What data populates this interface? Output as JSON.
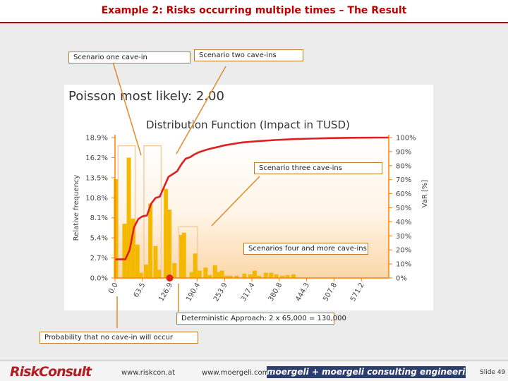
{
  "slide": {
    "title": "Example 2: Risks occurring multiple times – The Result",
    "number": "Slide 49"
  },
  "callouts": {
    "one": "Scenario one cave-in",
    "two": "Scenario two cave-ins",
    "three": "Scenario three cave-ins",
    "four": "Scenarios four and more cave-ins",
    "deterministic": "Deterministic Approach: 2 x 65,000 = 130,000",
    "zero": "Probability that no cave-in will occur"
  },
  "footer": {
    "logo": "RiskConsult",
    "url1": "www.riskcon.at",
    "url2": "www.moergeli.com",
    "logo2": "moergeli + moergeli consulting engineering"
  },
  "chart_data": {
    "type": "bar",
    "heading": "Poisson most likely: 2.00",
    "title": "Distribution Function (Impact in TUSD)",
    "ylabel": "Relative frequency",
    "y2label": "VaR [%]",
    "ylim": [
      0,
      18.9
    ],
    "y2lim": [
      0,
      100
    ],
    "yticks": [
      "18.9%",
      "16.2%",
      "13.5%",
      "10.8%",
      "8.1%",
      "5.4%",
      "2.7%",
      "0.0%"
    ],
    "y2ticks": [
      "100%",
      "90%",
      "80%",
      "70%",
      "60%",
      "50%",
      "40%",
      "30%",
      "20%",
      "10%",
      "0%"
    ],
    "xticks": [
      "0.0",
      "63.5",
      "126.9",
      "190.4",
      "253.9",
      "317.4",
      "380.8",
      "444.3",
      "507.8",
      "571.2"
    ],
    "xlim": [
      0,
      635
    ],
    "bar_x": [
      2,
      22,
      32,
      42,
      52,
      60,
      72,
      82,
      94,
      102,
      118,
      126,
      138,
      154,
      160,
      178,
      186,
      196,
      210,
      220,
      232,
      240,
      248,
      258,
      268,
      282,
      300,
      314,
      324,
      334,
      350,
      362,
      374,
      388,
      400,
      414
    ],
    "bar_values": [
      13.3,
      7.3,
      16.2,
      8.0,
      4.5,
      0.7,
      1.8,
      10.0,
      4.3,
      1.1,
      12.0,
      9.2,
      2.0,
      5.8,
      6.1,
      0.8,
      3.3,
      1.0,
      1.4,
      0.4,
      1.7,
      0.8,
      1.0,
      0.3,
      0.3,
      0.3,
      0.6,
      0.5,
      1.0,
      0.3,
      0.7,
      0.7,
      0.5,
      0.3,
      0.4,
      0.5
    ],
    "cdf_x": [
      0,
      24,
      34,
      44,
      54,
      64,
      74,
      84,
      94,
      104,
      114,
      124,
      134,
      144,
      154,
      164,
      174,
      184,
      194,
      204,
      214,
      224,
      234,
      244,
      254,
      274,
      294,
      334,
      374,
      414,
      454,
      494,
      534,
      574,
      614,
      635
    ],
    "cdf_values": [
      13.3,
      13.3,
      20.0,
      36.0,
      42.0,
      44.0,
      44.5,
      53.0,
      57.0,
      58.0,
      65.0,
      72.0,
      74.0,
      76.0,
      81.0,
      85.0,
      86.0,
      88.0,
      89.5,
      90.5,
      91.5,
      92.3,
      93.0,
      93.7,
      94.5,
      95.5,
      96.5,
      97.5,
      98.3,
      98.9,
      99.3,
      99.6,
      99.8,
      99.9,
      100.0,
      100.0
    ],
    "marker_x": 126.9,
    "marker_value": 0,
    "colors": {
      "bar": "#f5b800",
      "cdf": "#e02020",
      "axis": "#ff8000",
      "marker": "#e02020",
      "guide": "#f6c79a"
    }
  }
}
